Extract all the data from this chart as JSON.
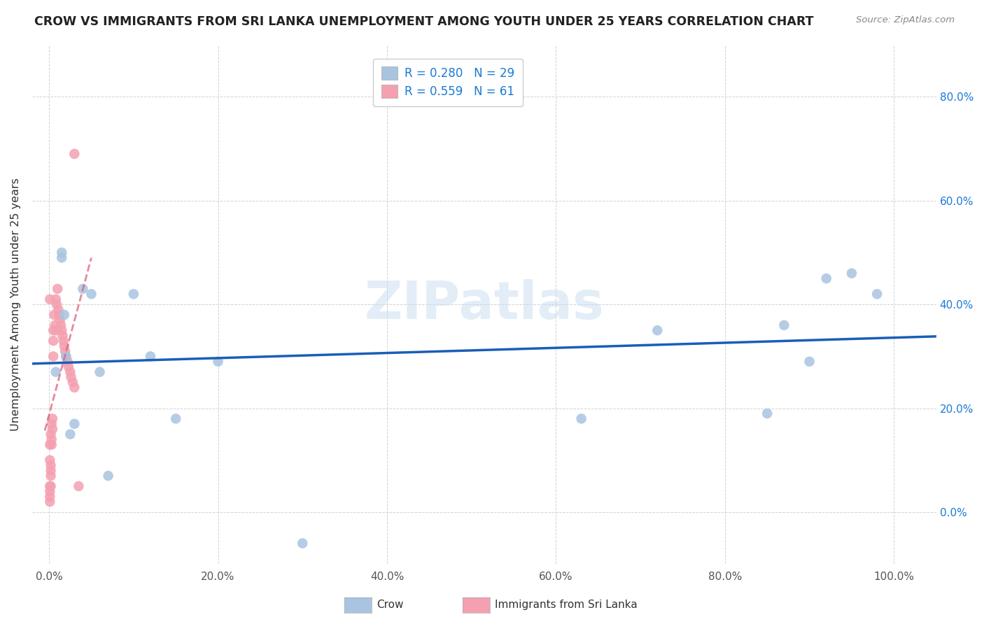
{
  "title": "CROW VS IMMIGRANTS FROM SRI LANKA UNEMPLOYMENT AMONG YOUTH UNDER 25 YEARS CORRELATION CHART",
  "source": "Source: ZipAtlas.com",
  "ylabel": "Unemployment Among Youth under 25 years",
  "legend_label1": "Crow",
  "legend_label2": "Immigrants from Sri Lanka",
  "R_crow": 0.28,
  "N_crow": 29,
  "R_srilanka": 0.559,
  "N_srilanka": 61,
  "crow_color": "#a8c4e0",
  "srilanka_color": "#f4a0b0",
  "crow_line_color": "#1a5eb8",
  "srilanka_line_color": "#e06080",
  "background_color": "#ffffff",
  "crow_points_x": [
    0.8,
    1.5,
    1.5,
    1.8,
    2.0,
    2.5,
    3.0,
    4.0,
    5.0,
    6.0,
    7.0,
    10.0,
    12.0,
    15.0,
    20.0,
    30.0,
    63.0,
    72.0,
    85.0,
    87.0,
    90.0,
    92.0,
    95.0,
    98.0
  ],
  "crow_points_y": [
    27.0,
    49.0,
    50.0,
    38.0,
    30.0,
    15.0,
    17.0,
    43.0,
    42.0,
    27.0,
    7.0,
    42.0,
    30.0,
    18.0,
    29.0,
    -6.0,
    18.0,
    35.0,
    19.0,
    36.0,
    29.0,
    45.0,
    46.0,
    42.0
  ],
  "srilanka_points_x": [
    0.1,
    0.1,
    0.1,
    0.1,
    0.1,
    0.1,
    0.1,
    0.2,
    0.2,
    0.2,
    0.2,
    0.2,
    0.3,
    0.3,
    0.3,
    0.4,
    0.4,
    0.5,
    0.5,
    0.5,
    0.6,
    0.7,
    0.8,
    0.8,
    0.9,
    1.0,
    1.1,
    1.2,
    1.3,
    1.4,
    1.5,
    1.6,
    1.7,
    1.8,
    1.9,
    2.0,
    2.2,
    2.3,
    2.5,
    2.6,
    2.8,
    3.0,
    3.0,
    3.5
  ],
  "srilanka_points_y": [
    10.0,
    41.0,
    13.0,
    5.0,
    4.0,
    3.0,
    2.0,
    15.0,
    9.0,
    8.0,
    7.0,
    5.0,
    17.0,
    14.0,
    13.0,
    18.0,
    16.0,
    35.0,
    33.0,
    30.0,
    38.0,
    36.0,
    41.0,
    35.0,
    40.0,
    43.0,
    39.0,
    38.0,
    37.0,
    36.0,
    35.0,
    34.0,
    33.0,
    32.0,
    31.0,
    30.0,
    29.0,
    28.0,
    27.0,
    26.0,
    25.0,
    24.0,
    69.0,
    5.0
  ],
  "ylim": [
    -10.0,
    90.0
  ],
  "xlim": [
    -2.0,
    105.0
  ],
  "yticks": [
    0.0,
    20.0,
    40.0,
    60.0,
    80.0
  ],
  "ytick_labels": [
    "0.0%",
    "20.0%",
    "40.0%",
    "60.0%",
    "80.0%"
  ],
  "xticks": [
    0.0,
    20.0,
    40.0,
    60.0,
    80.0,
    100.0
  ],
  "xtick_labels": [
    "0.0%",
    "20.0%",
    "40.0%",
    "60.0%",
    "80.0%",
    "100.0%"
  ]
}
